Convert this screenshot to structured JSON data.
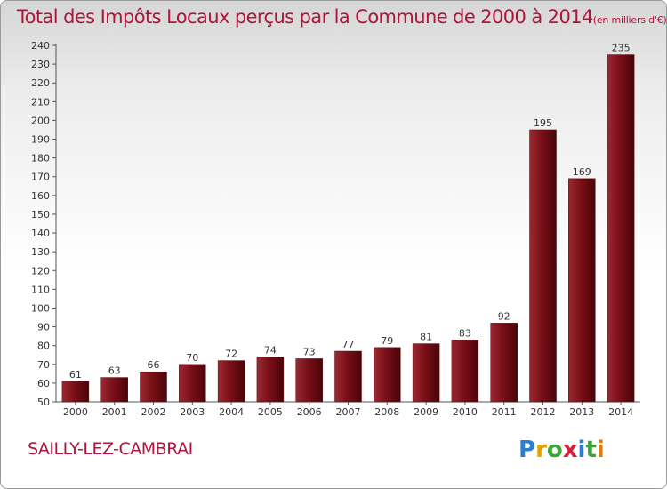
{
  "header": {
    "title": "Total des Impôts Locaux perçus par la Commune de 2000 à 2014",
    "unit": "(en milliers d'€)"
  },
  "footer": {
    "commune": "SAILLY-LEZ-CAMBRAI",
    "logo_letters": [
      "P",
      "r",
      "o",
      "x",
      "i",
      "t",
      "i"
    ],
    "logo_colors": [
      "#2a7fd4",
      "#e2a400",
      "#3aa535",
      "#d81e3a",
      "#2a7fd4",
      "#3aa535",
      "#e27d00"
    ]
  },
  "chart_data": {
    "type": "bar",
    "categories": [
      "2000",
      "2001",
      "2002",
      "2003",
      "2004",
      "2005",
      "2006",
      "2007",
      "2008",
      "2009",
      "2010",
      "2011",
      "2012",
      "2013",
      "2014"
    ],
    "values": [
      61,
      63,
      66,
      70,
      72,
      74,
      73,
      77,
      79,
      81,
      83,
      92,
      195,
      169,
      235
    ],
    "ylim": [
      50,
      240
    ],
    "yticks": [
      50,
      60,
      70,
      80,
      90,
      100,
      110,
      120,
      130,
      140,
      150,
      160,
      170,
      180,
      190,
      200,
      210,
      220,
      230,
      240
    ],
    "grid": false,
    "bar_color": "#7a0f18",
    "title": "Total des Impôts Locaux perçus par la Commune de 2000 à 2014",
    "xlabel": "",
    "ylabel": ""
  }
}
